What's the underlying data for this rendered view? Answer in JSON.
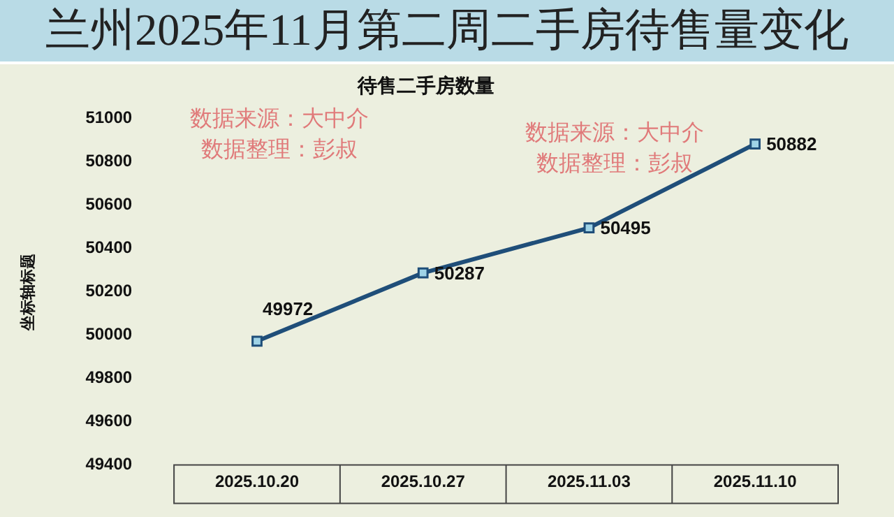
{
  "chart_data": {
    "type": "line",
    "title": "兰州2025年11月第二周二手房待售量变化",
    "subtitle": "待售二手房数量",
    "ylabel": "坐标轴标题",
    "categories": [
      "2025.10.20",
      "2025.10.27",
      "2025.11.03",
      "2025.11.10"
    ],
    "series": [
      {
        "color": "#1f4e79",
        "values": [
          49972,
          50287,
          50495,
          50882
        ]
      }
    ],
    "ylim": [
      49400,
      51000
    ],
    "yticks": [
      49400,
      49600,
      49800,
      50000,
      50200,
      50400,
      50600,
      50800,
      51000
    ],
    "grid": false,
    "legend": false,
    "marker": "square",
    "line_style": "solid",
    "data_labels": true,
    "annotations": [
      "数据来源：大中介",
      "数据整理：彭叔",
      "数据来源：大中介",
      "数据整理：彭叔"
    ]
  }
}
